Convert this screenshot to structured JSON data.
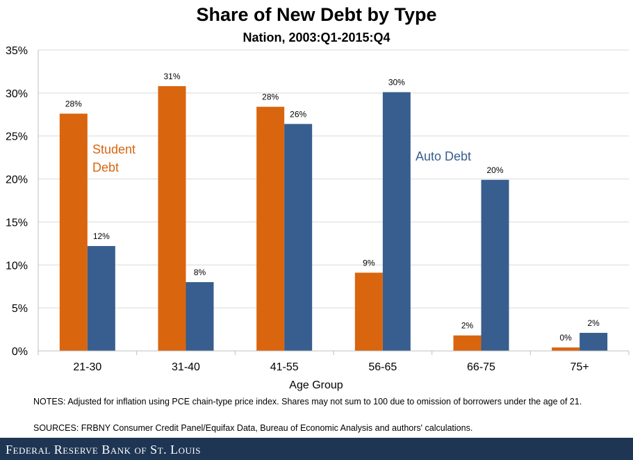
{
  "header": {
    "title": "Share of New Debt by Type",
    "subtitle": "Nation, 2003:Q1-2015:Q4"
  },
  "chart_data": {
    "type": "bar",
    "title": "Share of New Debt by Type",
    "subtitle": "Nation, 2003:Q1-2015:Q4",
    "xlabel": "Age Group",
    "ylabel": "",
    "ylim": [
      0,
      35
    ],
    "yticks": [
      0,
      5,
      10,
      15,
      20,
      25,
      30,
      35
    ],
    "ytick_labels": [
      "0%",
      "5%",
      "10%",
      "15%",
      "20%",
      "25%",
      "30%",
      "35%"
    ],
    "categories": [
      "21-30",
      "31-40",
      "41-55",
      "56-65",
      "66-75",
      "75+"
    ],
    "series": [
      {
        "name": "Student Debt",
        "color": "#d9650f",
        "values": [
          27.6,
          30.8,
          28.4,
          9.1,
          1.8,
          0.4
        ],
        "labels": [
          "28%",
          "31%",
          "28%",
          "9%",
          "2%",
          "0%"
        ]
      },
      {
        "name": "Auto Debt",
        "color": "#375e8e",
        "values": [
          12.2,
          8.0,
          26.4,
          30.1,
          19.9,
          2.1
        ],
        "labels": [
          "12%",
          "8%",
          "26%",
          "30%",
          "20%",
          "2%"
        ]
      }
    ],
    "annotations": {
      "student_line1": "Student",
      "student_line2": "Debt",
      "auto": "Auto Debt"
    },
    "grid": "horizontal"
  },
  "notes": "NOTES: Adjusted for inflation using PCE chain-type price index. Shares may not sum to 100 due to omission of borrowers under the age of 21.",
  "sources": "SOURCES: FRBNY Consumer Credit Panel/Equifax Data, Bureau of Economic Analysis and authors' calculations.",
  "footer": {
    "brand": "Federal Reserve Bank of St. Louis"
  }
}
